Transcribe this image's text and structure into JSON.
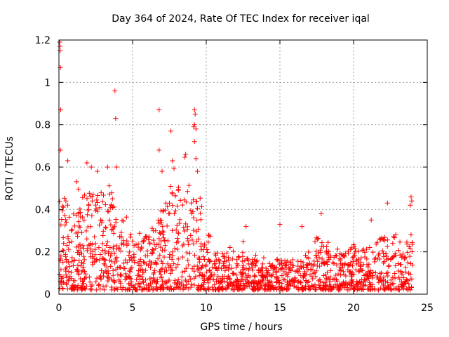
{
  "chart_data": {
    "type": "scatter",
    "title": "Day 364 of 2024, Rate Of TEC Index for receiver iqal",
    "xlabel": "GPS time / hours",
    "ylabel": "ROTI / TECUs",
    "xlim": [
      0,
      25
    ],
    "ylim": [
      0,
      1.2
    ],
    "xticks": [
      0,
      5,
      10,
      15,
      20,
      25
    ],
    "xtick_labels": [
      "0",
      "5",
      "10",
      "15",
      "20",
      "25"
    ],
    "yticks": [
      0,
      0.2,
      0.4,
      0.6,
      0.8,
      1.0,
      1.2
    ],
    "ytick_labels": [
      "0",
      "0.2",
      "0.4",
      "0.6",
      "0.8",
      "1",
      "1.2"
    ],
    "grid": true,
    "marker": "+",
    "color": "#ff0000",
    "series": [
      {
        "name": "ROTI",
        "envelope": [
          {
            "x": 0.0,
            "y": 0.5
          },
          {
            "x": 0.5,
            "y": 0.42
          },
          {
            "x": 1.0,
            "y": 0.4
          },
          {
            "x": 1.5,
            "y": 0.45
          },
          {
            "x": 2.0,
            "y": 0.55
          },
          {
            "x": 2.5,
            "y": 0.45
          },
          {
            "x": 3.0,
            "y": 0.55
          },
          {
            "x": 3.5,
            "y": 0.5
          },
          {
            "x": 4.0,
            "y": 0.4
          },
          {
            "x": 4.5,
            "y": 0.32
          },
          {
            "x": 5.0,
            "y": 0.25
          },
          {
            "x": 5.5,
            "y": 0.22
          },
          {
            "x": 6.0,
            "y": 0.28
          },
          {
            "x": 6.5,
            "y": 0.3
          },
          {
            "x": 7.0,
            "y": 0.4
          },
          {
            "x": 7.5,
            "y": 0.45
          },
          {
            "x": 8.0,
            "y": 0.48
          },
          {
            "x": 8.5,
            "y": 0.5
          },
          {
            "x": 9.0,
            "y": 0.55
          },
          {
            "x": 9.5,
            "y": 0.42
          },
          {
            "x": 10.0,
            "y": 0.3
          },
          {
            "x": 10.5,
            "y": 0.22
          },
          {
            "x": 11.0,
            "y": 0.18
          },
          {
            "x": 11.5,
            "y": 0.16
          },
          {
            "x": 12.0,
            "y": 0.15
          },
          {
            "x": 12.5,
            "y": 0.18
          },
          {
            "x": 13.0,
            "y": 0.15
          },
          {
            "x": 13.5,
            "y": 0.14
          },
          {
            "x": 14.0,
            "y": 0.12
          },
          {
            "x": 14.5,
            "y": 0.14
          },
          {
            "x": 15.0,
            "y": 0.15
          },
          {
            "x": 15.5,
            "y": 0.14
          },
          {
            "x": 16.0,
            "y": 0.15
          },
          {
            "x": 16.5,
            "y": 0.14
          },
          {
            "x": 17.0,
            "y": 0.2
          },
          {
            "x": 17.5,
            "y": 0.25
          },
          {
            "x": 18.0,
            "y": 0.22
          },
          {
            "x": 18.5,
            "y": 0.18
          },
          {
            "x": 19.0,
            "y": 0.16
          },
          {
            "x": 19.5,
            "y": 0.18
          },
          {
            "x": 20.0,
            "y": 0.22
          },
          {
            "x": 20.5,
            "y": 0.2
          },
          {
            "x": 21.0,
            "y": 0.22
          },
          {
            "x": 21.5,
            "y": 0.28
          },
          {
            "x": 22.0,
            "y": 0.25
          },
          {
            "x": 22.5,
            "y": 0.28
          },
          {
            "x": 23.0,
            "y": 0.22
          },
          {
            "x": 23.5,
            "y": 0.22
          },
          {
            "x": 24.0,
            "y": 0.25
          }
        ],
        "peaks": [
          {
            "x": 0.05,
            "y": 1.19
          },
          {
            "x": 0.07,
            "y": 1.17
          },
          {
            "x": 0.08,
            "y": 1.15
          },
          {
            "x": 0.1,
            "y": 1.07
          },
          {
            "x": 0.12,
            "y": 0.87
          },
          {
            "x": 0.1,
            "y": 0.68
          },
          {
            "x": 0.6,
            "y": 0.63
          },
          {
            "x": 1.9,
            "y": 0.62
          },
          {
            "x": 2.2,
            "y": 0.6
          },
          {
            "x": 2.6,
            "y": 0.58
          },
          {
            "x": 3.3,
            "y": 0.6
          },
          {
            "x": 3.8,
            "y": 0.96
          },
          {
            "x": 3.85,
            "y": 0.83
          },
          {
            "x": 3.9,
            "y": 0.6
          },
          {
            "x": 6.8,
            "y": 0.87
          },
          {
            "x": 6.8,
            "y": 0.68
          },
          {
            "x": 7.0,
            "y": 0.58
          },
          {
            "x": 7.6,
            "y": 0.77
          },
          {
            "x": 7.7,
            "y": 0.63
          },
          {
            "x": 8.6,
            "y": 0.66
          },
          {
            "x": 9.2,
            "y": 0.87
          },
          {
            "x": 9.25,
            "y": 0.85
          },
          {
            "x": 9.2,
            "y": 0.8
          },
          {
            "x": 9.15,
            "y": 0.79
          },
          {
            "x": 9.3,
            "y": 0.78
          },
          {
            "x": 9.2,
            "y": 0.72
          },
          {
            "x": 9.3,
            "y": 0.64
          },
          {
            "x": 9.4,
            "y": 0.58
          },
          {
            "x": 12.7,
            "y": 0.32
          },
          {
            "x": 15.0,
            "y": 0.33
          },
          {
            "x": 16.5,
            "y": 0.32
          },
          {
            "x": 17.8,
            "y": 0.38
          },
          {
            "x": 21.2,
            "y": 0.35
          },
          {
            "x": 22.3,
            "y": 0.43
          },
          {
            "x": 23.9,
            "y": 0.46
          },
          {
            "x": 23.95,
            "y": 0.44
          },
          {
            "x": 23.85,
            "y": 0.42
          },
          {
            "x": 23.9,
            "y": 0.28
          }
        ]
      }
    ],
    "points_per_hour": 70,
    "seed": 364
  }
}
